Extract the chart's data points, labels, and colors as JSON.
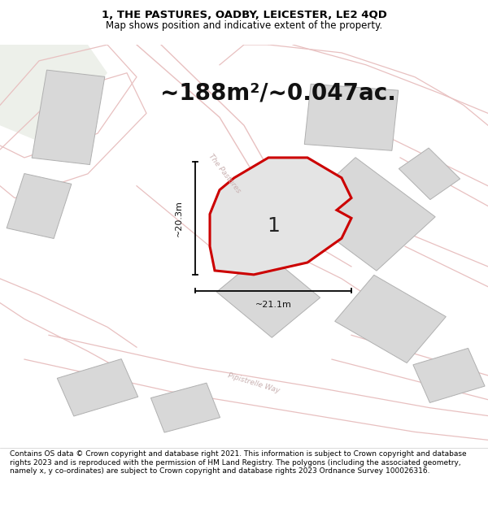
{
  "title_line1": "1, THE PASTURES, OADBY, LEICESTER, LE2 4QD",
  "title_line2": "Map shows position and indicative extent of the property.",
  "area_text": "~188m²/~0.047ac.",
  "width_label": "~21.1m",
  "height_label": "~20.3m",
  "label_1": "1",
  "street_label1": "The Pastures",
  "street_label2": "Pipistrelle Way",
  "footer_text": "Contains OS data © Crown copyright and database right 2021. This information is subject to Crown copyright and database rights 2023 and is reproduced with the permission of HM Land Registry. The polygons (including the associated geometry, namely x, y co-ordinates) are subject to Crown copyright and database rights 2023 Ordnance Survey 100026316.",
  "map_bg": "#f2f1f0",
  "building_fill": "#d8d8d8",
  "building_edge": "#b0b0b0",
  "plot_outline_color": "#cc0000",
  "plot_fill": "#e4e4e4",
  "street_label_color": "#c8b0b0",
  "road_line_color": "#e8c0c0",
  "title_fontsize": 9.5,
  "subtitle_fontsize": 8.5,
  "area_fontsize": 20,
  "label_fontsize": 18,
  "footer_fontsize": 6.5
}
